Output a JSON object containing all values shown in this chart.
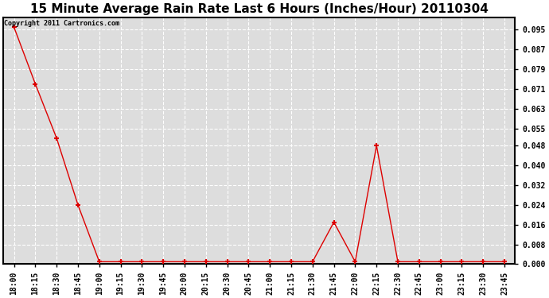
{
  "title": "15 Minute Average Rain Rate Last 6 Hours (Inches/Hour) 20110304",
  "copyright_text": "Copyright 2011 Cartronics.com",
  "x_labels": [
    "18:00",
    "18:15",
    "18:30",
    "18:45",
    "19:00",
    "19:15",
    "19:30",
    "19:45",
    "20:00",
    "20:15",
    "20:30",
    "20:45",
    "21:00",
    "21:15",
    "21:30",
    "21:45",
    "22:00",
    "22:15",
    "22:30",
    "22:45",
    "23:00",
    "23:15",
    "23:30",
    "23:45"
  ],
  "y_values": [
    0.096,
    0.073,
    0.051,
    0.024,
    0.001,
    0.001,
    0.001,
    0.001,
    0.001,
    0.001,
    0.001,
    0.001,
    0.001,
    0.001,
    0.001,
    0.017,
    0.001,
    0.048,
    0.001,
    0.001,
    0.001,
    0.001,
    0.001,
    0.001
  ],
  "line_color": "#dd0000",
  "marker_color": "#dd0000",
  "background_color": "#ffffff",
  "plot_bg_color": "#dddddd",
  "grid_color": "#ffffff",
  "border_color": "#000000",
  "ylim": [
    0.0,
    0.1
  ],
  "yticks": [
    0.0,
    0.008,
    0.016,
    0.024,
    0.032,
    0.04,
    0.048,
    0.055,
    0.063,
    0.071,
    0.079,
    0.087,
    0.095
  ],
  "ytick_labels": [
    "0.000",
    "0.008",
    "0.016",
    "0.024",
    "0.032",
    "0.040",
    "0.048",
    "0.055",
    "0.063",
    "0.071",
    "0.079",
    "0.087",
    "0.095"
  ],
  "title_fontsize": 11,
  "copyright_fontsize": 6,
  "tick_fontsize": 7
}
